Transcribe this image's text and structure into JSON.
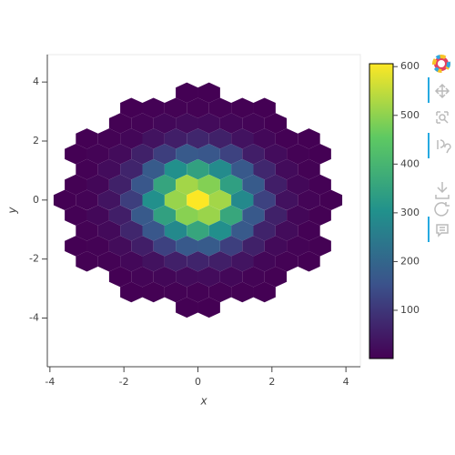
{
  "chart_data": {
    "type": "hexbin",
    "x_label": "x",
    "y_label": "y",
    "xlim": [
      -4.07,
      4.39
    ],
    "ylim": [
      -5.65,
      4.93
    ],
    "xticks": [
      -4,
      -2,
      0,
      2,
      4
    ],
    "yticks": [
      -4,
      -2,
      0,
      2,
      4
    ],
    "grid": false,
    "colormap": "viridis",
    "clim": [
      1,
      606
    ],
    "colorbar_ticks": [
      100,
      200,
      300,
      400,
      500,
      600
    ],
    "rows": [
      {
        "y": 3.64,
        "x": [
          -0.3,
          0.3
        ],
        "values": [
          1,
          1
        ]
      },
      {
        "y": 3.12,
        "x": [
          -1.8,
          -1.2,
          -0.6,
          0,
          0.6,
          1.2,
          1.8
        ],
        "values": [
          1,
          3,
          4,
          5,
          4,
          2,
          1
        ]
      },
      {
        "y": 2.6,
        "x": [
          -2.1,
          -1.5,
          -0.9,
          -0.3,
          0.3,
          0.9,
          1.5,
          2.1
        ],
        "values": [
          2,
          6,
          15,
          21,
          19,
          13,
          8,
          1
        ]
      },
      {
        "y": 2.08,
        "x": [
          -3,
          -2.4,
          -1.8,
          -1.2,
          -0.6,
          0,
          0.6,
          1.2,
          1.8,
          2.4,
          3
        ],
        "values": [
          1,
          5,
          13,
          35,
          56,
          71,
          60,
          33,
          15,
          3,
          1
        ]
      },
      {
        "y": 1.56,
        "x": [
          -3.3,
          -2.7,
          -2.1,
          -1.5,
          -0.9,
          -0.3,
          0.3,
          0.9,
          1.5,
          2.1,
          2.7,
          3.3
        ],
        "values": [
          1,
          6,
          19,
          60,
          115,
          172,
          165,
          122,
          55,
          22,
          4,
          1
        ]
      },
      {
        "y": 1.04,
        "x": [
          -3,
          -2.4,
          -1.8,
          -1.2,
          -0.6,
          0,
          0.6,
          1.2,
          1.8,
          2.4,
          3
        ],
        "values": [
          3,
          22,
          66,
          175,
          300,
          345,
          288,
          168,
          72,
          19,
          5
        ]
      },
      {
        "y": 0.52,
        "x": [
          -3.3,
          -2.7,
          -2.1,
          -1.5,
          -0.9,
          -0.3,
          0.3,
          0.9,
          1.5,
          2.1,
          2.7,
          3.3
        ],
        "values": [
          2,
          12,
          60,
          165,
          355,
          520,
          490,
          340,
          175,
          55,
          15,
          3
        ]
      },
      {
        "y": 0,
        "x": [
          -3.6,
          -3,
          -2.4,
          -1.8,
          -1.2,
          -0.6,
          0,
          0.6,
          1.2,
          1.8,
          2.4,
          3,
          3.6
        ],
        "values": [
          1,
          6,
          36,
          115,
          300,
          510,
          605,
          520,
          285,
          122,
          31,
          8,
          2
        ]
      },
      {
        "y": -0.52,
        "x": [
          -3.3,
          -2.7,
          -2.1,
          -1.5,
          -0.9,
          -0.3,
          0.3,
          0.9,
          1.5,
          2.1,
          2.7,
          3.3
        ],
        "values": [
          3,
          15,
          55,
          172,
          345,
          495,
          512,
          360,
          168,
          60,
          13,
          2
        ]
      },
      {
        "y": -1.04,
        "x": [
          -3,
          -2.4,
          -1.8,
          -1.2,
          -0.6,
          0,
          0.6,
          1.2,
          1.8,
          2.4,
          3
        ],
        "values": [
          4,
          18,
          70,
          165,
          285,
          358,
          298,
          172,
          65,
          21,
          3
        ]
      },
      {
        "y": -1.56,
        "x": [
          -3.3,
          -2.7,
          -2.1,
          -1.5,
          -0.9,
          -0.3,
          0.3,
          0.9,
          1.5,
          2.1,
          2.7,
          3.3
        ],
        "values": [
          1,
          4,
          21,
          56,
          121,
          168,
          175,
          116,
          60,
          18,
          6,
          2
        ]
      },
      {
        "y": -2.08,
        "x": [
          -3,
          -2.4,
          -1.8,
          -1.2,
          -0.6,
          0,
          0.6,
          1.2,
          1.8,
          2.4,
          3
        ],
        "values": [
          2,
          4,
          15,
          32,
          59,
          67,
          57,
          36,
          13,
          5,
          1
        ]
      },
      {
        "y": -2.6,
        "x": [
          -2.1,
          -1.5,
          -0.9,
          -0.3,
          0.3,
          0.9,
          1.5,
          2.1
        ],
        "values": [
          1,
          8,
          13,
          19,
          22,
          15,
          6,
          2
        ]
      },
      {
        "y": -3.12,
        "x": [
          -1.8,
          -1.2,
          -0.6,
          0,
          0.6,
          1.2,
          1.8
        ],
        "values": [
          1,
          2,
          5,
          4,
          4,
          2,
          1
        ]
      },
      {
        "y": -3.64,
        "x": [
          -0.3,
          0.3
        ],
        "values": [
          1,
          1
        ]
      }
    ]
  }
}
